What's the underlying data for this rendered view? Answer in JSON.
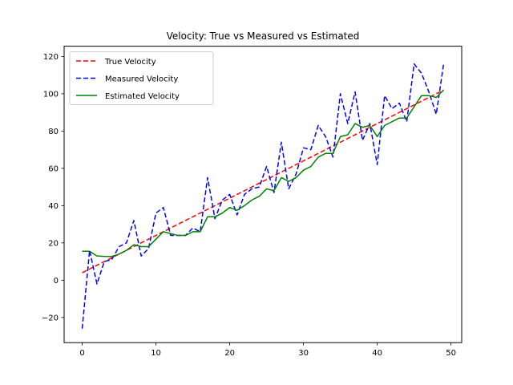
{
  "chart_data": {
    "type": "line",
    "title": "Velocity: True vs Measured vs Estimated",
    "xlabel": "",
    "ylabel": "",
    "xlim": [
      -2.45,
      51.45
    ],
    "ylim": [
      -33.5,
      125.5
    ],
    "xticks": [
      0,
      10,
      20,
      30,
      40,
      50
    ],
    "yticks": [
      -20,
      0,
      20,
      40,
      60,
      80,
      100,
      120
    ],
    "grid": false,
    "legend_position": "upper left",
    "x": [
      0,
      1,
      2,
      3,
      4,
      5,
      6,
      7,
      8,
      9,
      10,
      11,
      12,
      13,
      14,
      15,
      16,
      17,
      18,
      19,
      20,
      21,
      22,
      23,
      24,
      25,
      26,
      27,
      28,
      29,
      30,
      31,
      32,
      33,
      34,
      35,
      36,
      37,
      38,
      39,
      40,
      41,
      42,
      43,
      44,
      45,
      46,
      47,
      48,
      49
    ],
    "series": [
      {
        "name": "True Velocity",
        "color": "#ff0000",
        "dash": "dashed",
        "values": [
          4,
          6,
          8,
          10,
          12,
          14,
          16,
          18,
          20,
          22,
          24,
          26,
          28,
          30,
          32,
          34,
          36,
          38,
          40,
          42,
          44,
          46,
          48,
          50,
          52,
          54,
          56,
          58,
          60,
          62,
          64,
          66,
          68,
          70,
          72,
          74,
          76,
          78,
          80,
          82,
          84,
          86,
          88,
          90,
          92,
          94,
          96,
          98,
          100,
          102
        ]
      },
      {
        "name": "Measured Velocity",
        "color": "#0000ff",
        "dash": "dashed",
        "values": [
          -26,
          16,
          -2,
          10,
          11,
          18,
          20,
          32,
          13,
          17,
          36,
          39,
          24,
          24,
          24,
          28,
          26,
          55,
          33,
          43,
          46,
          35,
          46,
          49,
          50,
          61,
          47,
          74,
          49,
          57,
          71,
          70,
          83,
          77,
          66,
          100,
          84,
          101,
          75,
          84,
          62,
          99,
          92,
          95,
          85,
          116,
          111,
          101,
          89,
          116
        ]
      },
      {
        "name": "Estimated Velocity",
        "color": "#008000",
        "dash": "solid",
        "values": [
          15.5,
          15.5,
          13,
          12.8,
          12.7,
          14,
          16,
          19,
          18,
          18,
          22,
          26,
          25,
          24,
          24,
          26,
          26,
          34,
          34,
          36,
          39,
          37.5,
          40,
          43,
          45,
          49,
          48,
          55,
          53,
          55,
          59,
          61,
          66,
          68,
          68,
          77,
          78,
          84,
          82,
          83,
          77,
          83,
          85,
          87,
          87,
          93,
          99,
          99,
          98,
          102
        ]
      }
    ]
  }
}
